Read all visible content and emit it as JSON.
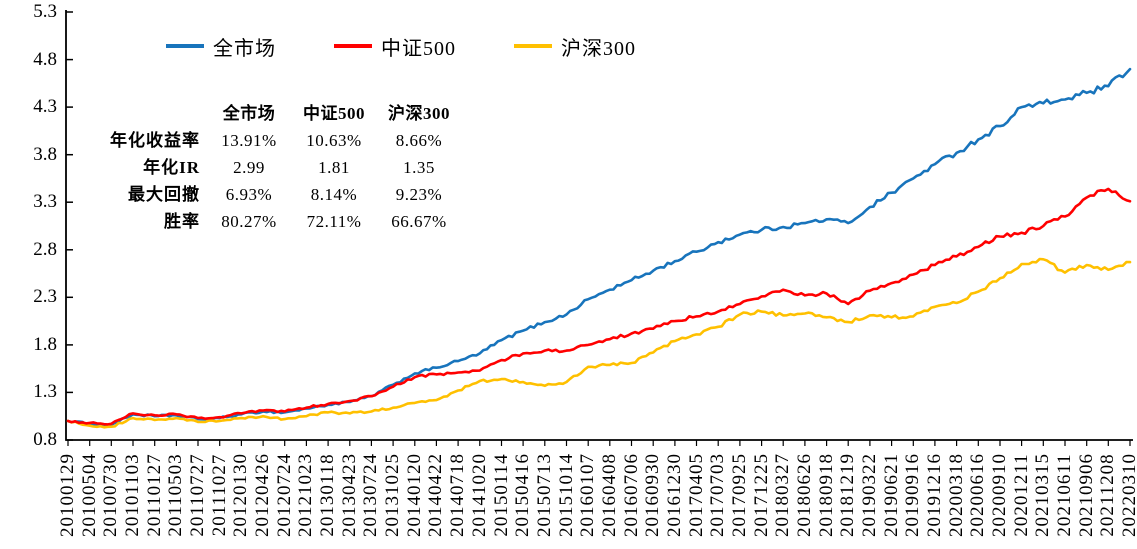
{
  "chart_data": {
    "type": "line",
    "title": "",
    "xlabel": "",
    "ylabel": "",
    "ylim": [
      0.8,
      5.3
    ],
    "y_ticks": [
      0.8,
      1.3,
      1.8,
      2.3,
      2.8,
      3.3,
      3.8,
      4.3,
      4.8,
      5.3
    ],
    "grid": false,
    "legend_position": "top-center",
    "x_labels": [
      "20100129",
      "20100504",
      "20100730",
      "20101103",
      "20110127",
      "20110503",
      "20110727",
      "20111027",
      "20120130",
      "20120426",
      "20120724",
      "20121023",
      "20130118",
      "20130423",
      "20130724",
      "20131025",
      "20140120",
      "20140422",
      "20140718",
      "20141020",
      "20150114",
      "20150416",
      "20150713",
      "20151014",
      "20160107",
      "20160408",
      "20160706",
      "20160930",
      "20161230",
      "20170405",
      "20170703",
      "20170925",
      "20171225",
      "20180327",
      "20180626",
      "20180918",
      "20181219",
      "20190322",
      "20190621",
      "20190916",
      "20191216",
      "20200318",
      "20200616",
      "20200910",
      "20201211",
      "20210315",
      "20210611",
      "20210906",
      "20211208",
      "20220310"
    ],
    "series": [
      {
        "name": "全市场",
        "slug": "all-market",
        "color": "#1874BC",
        "values": [
          1.0,
          0.97,
          0.96,
          1.07,
          1.05,
          1.06,
          1.02,
          1.03,
          1.07,
          1.1,
          1.09,
          1.13,
          1.17,
          1.2,
          1.26,
          1.38,
          1.5,
          1.56,
          1.63,
          1.71,
          1.85,
          1.95,
          2.04,
          2.12,
          2.28,
          2.38,
          2.48,
          2.58,
          2.68,
          2.78,
          2.88,
          2.96,
          3.01,
          3.04,
          3.08,
          3.12,
          3.08,
          3.25,
          3.4,
          3.55,
          3.7,
          3.82,
          3.96,
          4.1,
          4.3,
          4.34,
          4.38,
          4.45,
          4.52,
          4.7
        ]
      },
      {
        "name": "中证500",
        "slug": "csi500",
        "color": "#FF0000",
        "values": [
          1.0,
          0.98,
          0.97,
          1.08,
          1.06,
          1.07,
          1.03,
          1.04,
          1.08,
          1.11,
          1.1,
          1.14,
          1.18,
          1.21,
          1.26,
          1.36,
          1.46,
          1.49,
          1.51,
          1.53,
          1.64,
          1.71,
          1.74,
          1.74,
          1.8,
          1.86,
          1.92,
          1.97,
          2.05,
          2.1,
          2.15,
          2.23,
          2.31,
          2.38,
          2.32,
          2.34,
          2.23,
          2.37,
          2.45,
          2.54,
          2.64,
          2.73,
          2.83,
          2.94,
          2.98,
          3.05,
          3.15,
          3.35,
          3.44,
          3.31
        ]
      },
      {
        "name": "沪深300",
        "slug": "hs300",
        "color": "#FFC000",
        "values": [
          1.0,
          0.95,
          0.94,
          1.03,
          1.01,
          1.03,
          0.99,
          1.0,
          1.03,
          1.05,
          1.02,
          1.05,
          1.09,
          1.08,
          1.1,
          1.14,
          1.19,
          1.22,
          1.32,
          1.42,
          1.44,
          1.41,
          1.37,
          1.41,
          1.57,
          1.59,
          1.61,
          1.72,
          1.84,
          1.91,
          1.99,
          2.12,
          2.15,
          2.11,
          2.13,
          2.09,
          2.04,
          2.11,
          2.09,
          2.1,
          2.2,
          2.24,
          2.36,
          2.5,
          2.65,
          2.7,
          2.56,
          2.64,
          2.59,
          2.67
        ]
      }
    ]
  },
  "stats_table": {
    "columns": [
      "全市场",
      "中证500",
      "沪深300"
    ],
    "rows": [
      {
        "label": "年化收益率",
        "values": [
          "13.91%",
          "10.63%",
          "8.66%"
        ]
      },
      {
        "label": "年化IR",
        "values": [
          "2.99",
          "1.81",
          "1.35"
        ]
      },
      {
        "label": "最大回撤",
        "values": [
          "6.93%",
          "8.14%",
          "9.23%"
        ]
      },
      {
        "label": "胜率",
        "values": [
          "80.27%",
          "72.11%",
          "66.67%"
        ]
      }
    ]
  },
  "style": {
    "axis_color": "#000000",
    "background": "#ffffff"
  }
}
